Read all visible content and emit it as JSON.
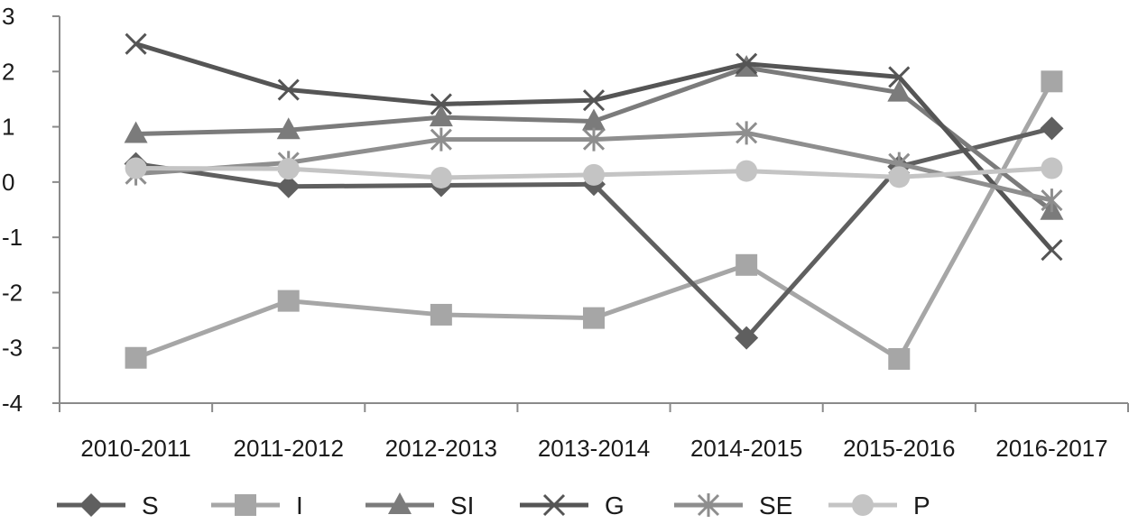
{
  "chart_data": {
    "type": "line",
    "title": "",
    "xlabel": "",
    "ylabel": "",
    "categories": [
      "2010-2011",
      "2011-2012",
      "2012-2013",
      "2013-2014",
      "2014-2015",
      "2015-2016",
      "2016-2017"
    ],
    "ylim": [
      -4,
      3
    ],
    "yticks": [
      3,
      2,
      1,
      0,
      -1,
      -2,
      -3,
      -4
    ],
    "ytick_labels": [
      "3",
      "2",
      "1",
      "0",
      "-1",
      "-2",
      "-3",
      "-4"
    ],
    "grid": false,
    "legend_position": "bottom",
    "series": [
      {
        "name": "S",
        "marker": "diamond",
        "color": "#5f5f5f",
        "values": [
          0.33,
          -0.08,
          -0.06,
          -0.04,
          -2.82,
          0.28,
          0.97
        ]
      },
      {
        "name": "I",
        "marker": "square",
        "color": "#a6a6a6",
        "values": [
          -3.18,
          -2.15,
          -2.4,
          -2.46,
          -1.5,
          -3.2,
          1.82
        ]
      },
      {
        "name": "SI",
        "marker": "triangle",
        "color": "#7b7b7b",
        "values": [
          0.87,
          0.94,
          1.17,
          1.1,
          2.07,
          1.62,
          -0.52
        ]
      },
      {
        "name": "G",
        "marker": "x",
        "color": "#555555",
        "values": [
          2.5,
          1.67,
          1.41,
          1.48,
          2.14,
          1.9,
          -1.23
        ]
      },
      {
        "name": "SE",
        "marker": "asterisk",
        "color": "#8e8e8e",
        "values": [
          0.15,
          0.35,
          0.77,
          0.77,
          0.89,
          0.33,
          -0.33
        ]
      },
      {
        "name": "P",
        "marker": "circle",
        "color": "#c4c4c4",
        "values": [
          0.25,
          0.24,
          0.08,
          0.13,
          0.2,
          0.09,
          0.25
        ]
      }
    ]
  }
}
